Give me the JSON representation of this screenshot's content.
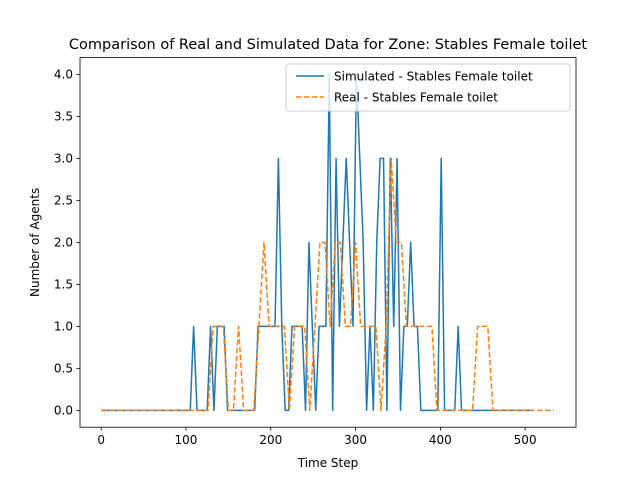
{
  "chart_data": {
    "type": "line",
    "title": "Comparison of Real and Simulated Data for Zone: Stables Female toilet",
    "xlabel": "Time Step",
    "ylabel": "Number of Agents",
    "xlim": [
      -25,
      560
    ],
    "ylim": [
      -0.2,
      4.2
    ],
    "xticks": [
      0,
      100,
      200,
      300,
      400,
      500
    ],
    "yticks": [
      0.0,
      0.5,
      1.0,
      1.5,
      2.0,
      2.5,
      3.0,
      3.5,
      4.0
    ],
    "ytick_labels": [
      "0.0",
      "0.5",
      "1.0",
      "1.5",
      "2.0",
      "2.5",
      "3.0",
      "3.5",
      "4.0"
    ],
    "grid": false,
    "legend_position": "top-right",
    "series": [
      {
        "name": "Simulated - Stables Female toilet",
        "color": "#1f77b4",
        "style": "solid",
        "x": [
          0,
          105,
          109,
          113,
          118,
          125,
          129,
          133,
          137,
          141,
          145,
          149,
          153,
          157,
          161,
          165,
          169,
          173,
          177,
          181,
          185,
          189,
          193,
          197,
          201,
          205,
          209,
          213,
          217,
          221,
          225,
          229,
          233,
          237,
          241,
          245,
          249,
          253,
          257,
          261,
          265,
          269,
          273,
          277,
          281,
          285,
          289,
          293,
          297,
          301,
          305,
          309,
          313,
          317,
          321,
          325,
          329,
          333,
          337,
          341,
          345,
          349,
          353,
          357,
          361,
          365,
          369,
          373,
          377,
          381,
          385,
          389,
          393,
          397,
          401,
          405,
          409,
          413,
          417,
          421,
          425,
          429,
          433,
          437,
          441,
          445,
          449,
          453,
          457,
          461,
          465,
          469,
          473,
          477,
          481,
          485,
          489,
          493,
          497,
          501,
          505,
          509
        ],
        "y": [
          0,
          0,
          1,
          0,
          0,
          0,
          1,
          0,
          1,
          1,
          1,
          0,
          0,
          0,
          0,
          0,
          0,
          0,
          0,
          0,
          1,
          1,
          1,
          1,
          1,
          1,
          3,
          1,
          0,
          0,
          1,
          1,
          1,
          1,
          0,
          2,
          1,
          0,
          1,
          1,
          1,
          4,
          0,
          3,
          1,
          2,
          3,
          2,
          1,
          4,
          3,
          2,
          0,
          1,
          0,
          2,
          3,
          3,
          0,
          3,
          1,
          3,
          0,
          1,
          1,
          2,
          1,
          1,
          0,
          0,
          0,
          0,
          0,
          0,
          3,
          0,
          0,
          0,
          0,
          1,
          0,
          0,
          0,
          0,
          0,
          0,
          0,
          0,
          0,
          0,
          0,
          0,
          0,
          0,
          0,
          0,
          0,
          0,
          0,
          0,
          0,
          0
        ]
      },
      {
        "name": "Real - Stables Female toilet",
        "color": "#ff7f0e",
        "style": "dashed",
        "x": [
          0,
          120,
          126,
          132,
          138,
          144,
          150,
          156,
          162,
          168,
          174,
          180,
          186,
          192,
          198,
          204,
          210,
          216,
          222,
          228,
          234,
          240,
          246,
          252,
          258,
          264,
          270,
          276,
          282,
          288,
          294,
          300,
          306,
          312,
          318,
          324,
          330,
          336,
          342,
          348,
          354,
          360,
          366,
          372,
          378,
          384,
          390,
          396,
          402,
          408,
          414,
          420,
          426,
          432,
          438,
          444,
          450,
          456,
          462,
          468,
          474,
          480,
          486,
          492,
          498,
          504,
          510,
          516,
          522,
          528,
          534
        ],
        "y": [
          0,
          0,
          0,
          1,
          1,
          1,
          0,
          0,
          1,
          0,
          0,
          0,
          1,
          2,
          1,
          1,
          1,
          1,
          0,
          1,
          1,
          1,
          0,
          1,
          2,
          2,
          1,
          2,
          2,
          1,
          1,
          2,
          1,
          1,
          1,
          1,
          0,
          1,
          3,
          2,
          2,
          1,
          1,
          1,
          1,
          1,
          1,
          0,
          0,
          0,
          0,
          0,
          0,
          0,
          0,
          1,
          1,
          1,
          0,
          0,
          0,
          0,
          0,
          0,
          0,
          0,
          0,
          0,
          0,
          0,
          0
        ]
      }
    ]
  }
}
